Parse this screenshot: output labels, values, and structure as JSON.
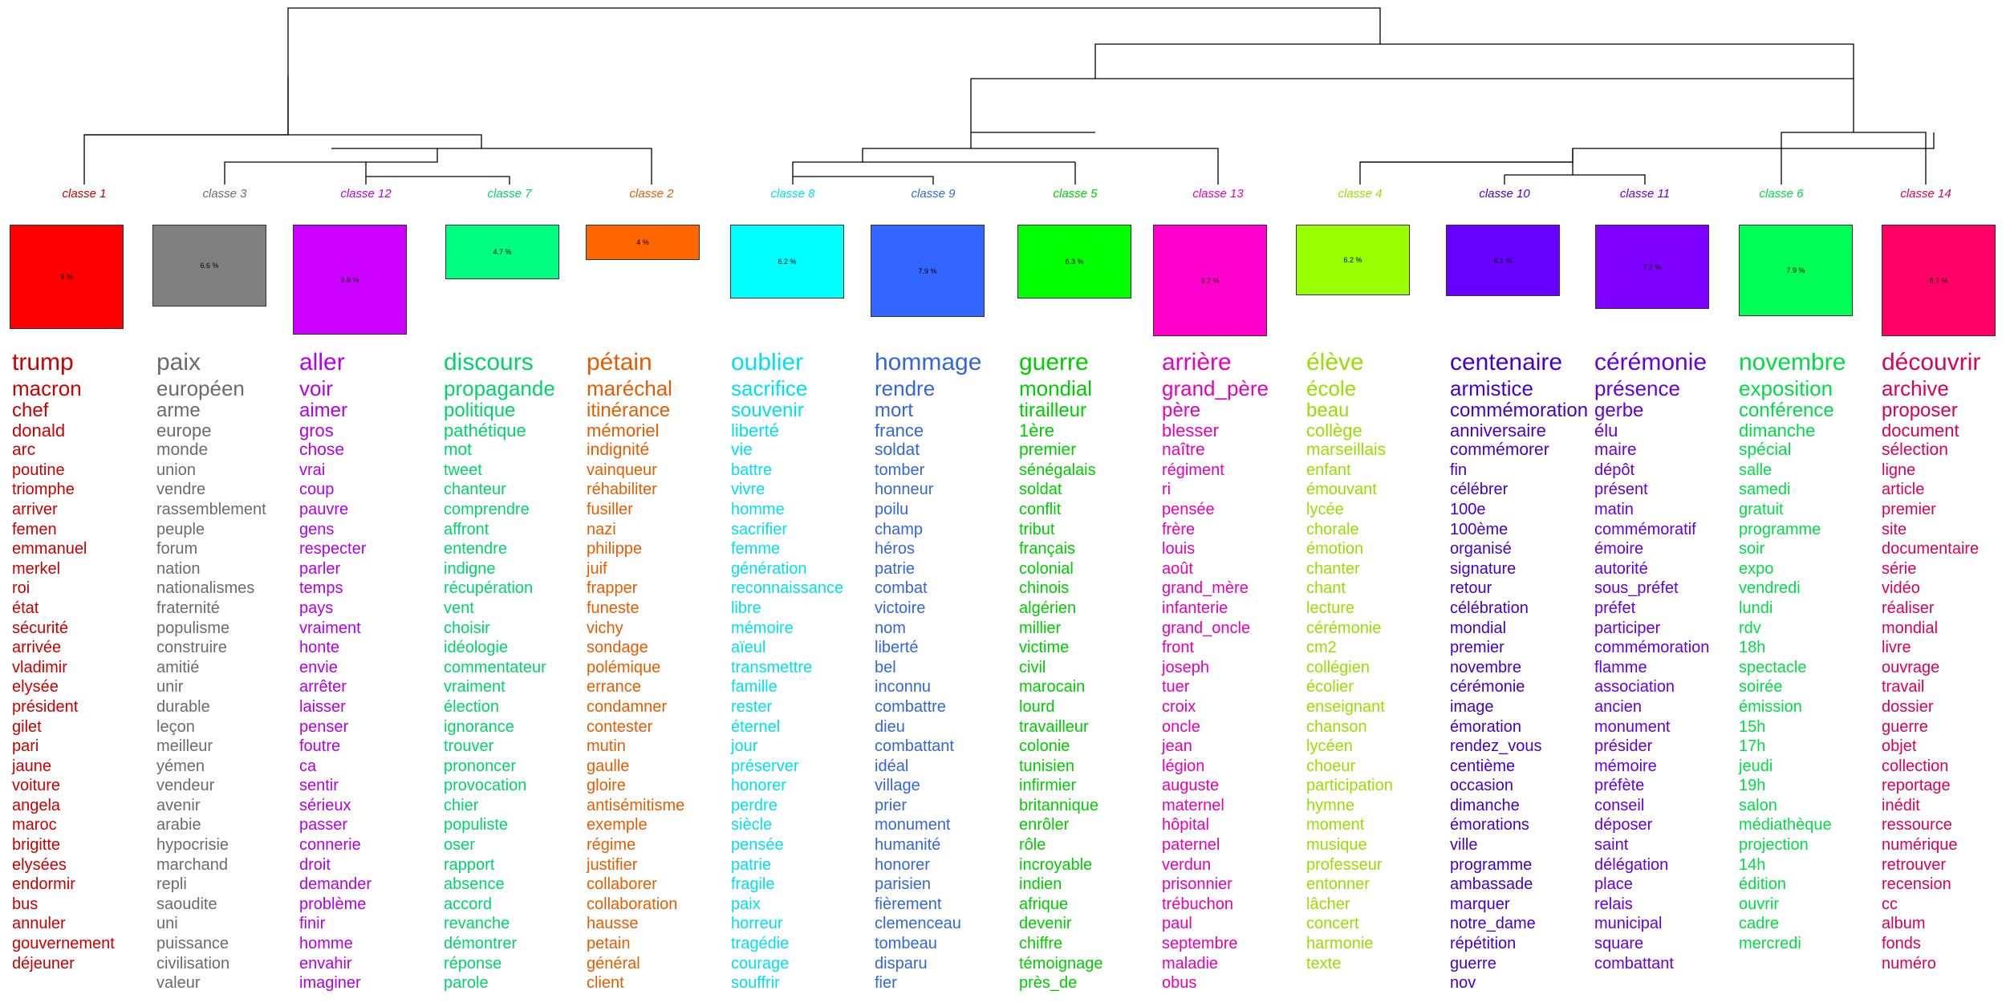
{
  "classes": [
    {
      "id": 1,
      "label": "classe 1",
      "percent": "9 %",
      "color": "#ff0000",
      "text_color": "#cc0000",
      "words": [
        "trump",
        "macron",
        "chef",
        "donald",
        "arc",
        "poutine",
        "triomphe",
        "arriver",
        "femen",
        "emmanuel",
        "merkel",
        "roi",
        "état",
        "sécurité",
        "arrivée",
        "vladimir",
        "elysée",
        "président",
        "gilet",
        "pari",
        "jaune",
        "voiture",
        "angela",
        "maroc",
        "brigitte",
        "elysées",
        "endormir",
        "bus",
        "annuler",
        "gouvernement",
        "déjeuner"
      ]
    },
    {
      "id": 3,
      "label": "classe 3",
      "percent": "6.6 %",
      "color": "#808080",
      "text_color": "#6b6b6b",
      "words": [
        "paix",
        "européen",
        "arme",
        "europe",
        "monde",
        "union",
        "vendre",
        "rassemblement",
        "peuple",
        "forum",
        "nation",
        "nationalismes",
        "fraternité",
        "populisme",
        "construire",
        "amitié",
        "unir",
        "durable",
        "leçon",
        "meilleur",
        "yémen",
        "vendeur",
        "avenir",
        "arabie",
        "hypocrisie",
        "marchand",
        "repli",
        "saoudite",
        "uni",
        "puissance",
        "civilisation",
        "valeur"
      ]
    },
    {
      "id": 12,
      "label": "classe 12",
      "percent": "9.6 %",
      "color": "#cc00ff",
      "text_color": "#b300e6",
      "words": [
        "aller",
        "voir",
        "aimer",
        "gros",
        "chose",
        "vrai",
        "coup",
        "pauvre",
        "gens",
        "respecter",
        "parler",
        "temps",
        "pays",
        "vraiment",
        "honte",
        "envie",
        "arrêter",
        "laisser",
        "penser",
        "foutre",
        "ca",
        "sentir",
        "sérieux",
        "passer",
        "connerie",
        "droit",
        "demander",
        "problème",
        "finir",
        "homme",
        "envahir",
        "imaginer"
      ]
    },
    {
      "id": 7,
      "label": "classe 7",
      "percent": "4.7 %",
      "color": "#00ff80",
      "text_color": "#00d46a",
      "words": [
        "discours",
        "propagande",
        "politique",
        "pathétique",
        "mot",
        "tweet",
        "chanteur",
        "comprendre",
        "affront",
        "entendre",
        "indigne",
        "récupération",
        "vent",
        "choisir",
        "idéologie",
        "commentateur",
        "vraiment",
        "élection",
        "ignorance",
        "trouver",
        "prononcer",
        "provocation",
        "chier",
        "populiste",
        "oser",
        "rapport",
        "absence",
        "accord",
        "revanche",
        "démontrer",
        "réponse",
        "parole"
      ]
    },
    {
      "id": 2,
      "label": "classe 2",
      "percent": "4 %",
      "color": "#ff6600",
      "text_color": "#e65c00",
      "words": [
        "pétain",
        "maréchal",
        "itinérance",
        "mémoriel",
        "indignité",
        "vainqueur",
        "réhabiliter",
        "fusiller",
        "nazi",
        "philippe",
        "juif",
        "frapper",
        "funeste",
        "vichy",
        "sondage",
        "polémique",
        "errance",
        "condamner",
        "contester",
        "mutin",
        "gaulle",
        "gloire",
        "antisémitisme",
        "exemple",
        "régime",
        "justifier",
        "collaborer",
        "collaboration",
        "hausse",
        "petain",
        "général",
        "client"
      ]
    },
    {
      "id": 8,
      "label": "classe 8",
      "percent": "6.2 %",
      "color": "#00ffff",
      "text_color": "#00e0f0",
      "words": [
        "oublier",
        "sacrifice",
        "souvenir",
        "liberté",
        "vie",
        "battre",
        "vivre",
        "homme",
        "sacrifier",
        "femme",
        "génération",
        "reconnaissance",
        "libre",
        "mémoire",
        "aïeul",
        "transmettre",
        "famille",
        "rester",
        "éternel",
        "jour",
        "préserver",
        "honorer",
        "perdre",
        "siècle",
        "pensée",
        "patrie",
        "fragile",
        "paix",
        "horreur",
        "tragédie",
        "courage",
        "souffrir"
      ]
    },
    {
      "id": 9,
      "label": "classe 9",
      "percent": "7.9 %",
      "color": "#3366ff",
      "text_color": "#3366dd",
      "words": [
        "hommage",
        "rendre",
        "mort",
        "france",
        "soldat",
        "tomber",
        "honneur",
        "poilu",
        "champ",
        "héros",
        "patrie",
        "combat",
        "victoire",
        "nom",
        "liberté",
        "bel",
        "inconnu",
        "combattre",
        "dieu",
        "combattant",
        "idéal",
        "village",
        "prier",
        "monument",
        "humanité",
        "honorer",
        "parisien",
        "fièrement",
        "clemenceau",
        "tombeau",
        "disparu",
        "fier"
      ]
    },
    {
      "id": 5,
      "label": "classe 5",
      "percent": "6.3 %",
      "color": "#00ff00",
      "text_color": "#00cc00",
      "words": [
        "guerre",
        "mondial",
        "tirailleur",
        "1ère",
        "premier",
        "sénégalais",
        "soldat",
        "conflit",
        "tribut",
        "français",
        "colonial",
        "chinois",
        "algérien",
        "millier",
        "victime",
        "civil",
        "marocain",
        "lourd",
        "travailleur",
        "colonie",
        "tunisien",
        "infirmier",
        "britannique",
        "enrôler",
        "rôle",
        "incroyable",
        "indien",
        "afrique",
        "devenir",
        "chiffre",
        "témoignage",
        "près_de"
      ]
    },
    {
      "id": 13,
      "label": "classe 13",
      "percent": "9.7 %",
      "color": "#ff00cc",
      "text_color": "#e600b8",
      "words": [
        "arrière",
        "grand_père",
        "père",
        "blesser",
        "naître",
        "régiment",
        "ri",
        "pensée",
        "frère",
        "louis",
        "août",
        "grand_mère",
        "infanterie",
        "grand_oncle",
        "front",
        "joseph",
        "tuer",
        "croix",
        "oncle",
        "jean",
        "légion",
        "auguste",
        "maternel",
        "hôpital",
        "paternel",
        "verdun",
        "prisonnier",
        "trébuchon",
        "paul",
        "septembre",
        "maladie",
        "obus"
      ]
    },
    {
      "id": 4,
      "label": "classe 4",
      "percent": "6.2 %",
      "color": "#99ff00",
      "text_color": "#99dd00",
      "words": [
        "élève",
        "école",
        "beau",
        "collège",
        "marseillais",
        "enfant",
        "émouvant",
        "lycée",
        "chorale",
        "émotion",
        "chanter",
        "chant",
        "lecture",
        "cérémonie",
        "cm2",
        "collégien",
        "écolier",
        "enseignant",
        "chanson",
        "lycéen",
        "choeur",
        "participation",
        "hymne",
        "moment",
        "musique",
        "professeur",
        "entonner",
        "lâcher",
        "concert",
        "harmonie",
        "texte"
      ]
    },
    {
      "id": 10,
      "label": "classe 10",
      "percent": "6.1 %",
      "color": "#6600ff",
      "text_color": "#4400cc",
      "words": [
        "centenaire",
        "armistice",
        "commémoration",
        "anniversaire",
        "commémorer",
        "fin",
        "célébrer",
        "100e",
        "100ème",
        "organisé",
        "signature",
        "retour",
        "célébration",
        "mondial",
        "premier",
        "novembre",
        "cérémonie",
        "image",
        "émoration",
        "rendez_vous",
        "centième",
        "occasion",
        "dimanche",
        "émorations",
        "ville",
        "programme",
        "ambassade",
        "marquer",
        "notre_dame",
        "répétition",
        "guerre",
        "nov"
      ]
    },
    {
      "id": 11,
      "label": "classe 11",
      "percent": "7.2 %",
      "color": "#8000ff",
      "text_color": "#6600dd",
      "words": [
        "cérémonie",
        "présence",
        "gerbe",
        "élu",
        "maire",
        "dépôt",
        "présent",
        "matin",
        "commémoratif",
        "émoire",
        "autorité",
        "sous_préfet",
        "préfet",
        "participer",
        "commémoration",
        "flamme",
        "association",
        "ancien",
        "monument",
        "présider",
        "mémoire",
        "préfète",
        "conseil",
        "déposer",
        "saint",
        "délégation",
        "place",
        "relais",
        "municipal",
        "square",
        "combattant"
      ]
    },
    {
      "id": 6,
      "label": "classe 6",
      "percent": "7.9 %",
      "color": "#00ff55",
      "text_color": "#00dd44",
      "words": [
        "novembre",
        "exposition",
        "conférence",
        "dimanche",
        "spécial",
        "salle",
        "samedi",
        "gratuit",
        "programme",
        "soir",
        "expo",
        "vendredi",
        "lundi",
        "rdv",
        "18h",
        "spectacle",
        "soirée",
        "émission",
        "15h",
        "17h",
        "jeudi",
        "19h",
        "salon",
        "médiathèque",
        "projection",
        "14h",
        "édition",
        "ouvrir",
        "cadre",
        "mercredi"
      ]
    },
    {
      "id": 14,
      "label": "classe 14",
      "percent": "8.7 %",
      "color": "#ff0066",
      "text_color": "#dd0055",
      "words": [
        "découvrir",
        "archive",
        "proposer",
        "document",
        "sélection",
        "ligne",
        "article",
        "premier",
        "site",
        "documentaire",
        "série",
        "vidéo",
        "réaliser",
        "mondial",
        "livre",
        "ouvrage",
        "travail",
        "dossier",
        "guerre",
        "objet",
        "collection",
        "reportage",
        "inédit",
        "ressource",
        "numérique",
        "retrouver",
        "recension",
        "cc",
        "album",
        "fonds",
        "numéro"
      ]
    }
  ]
}
